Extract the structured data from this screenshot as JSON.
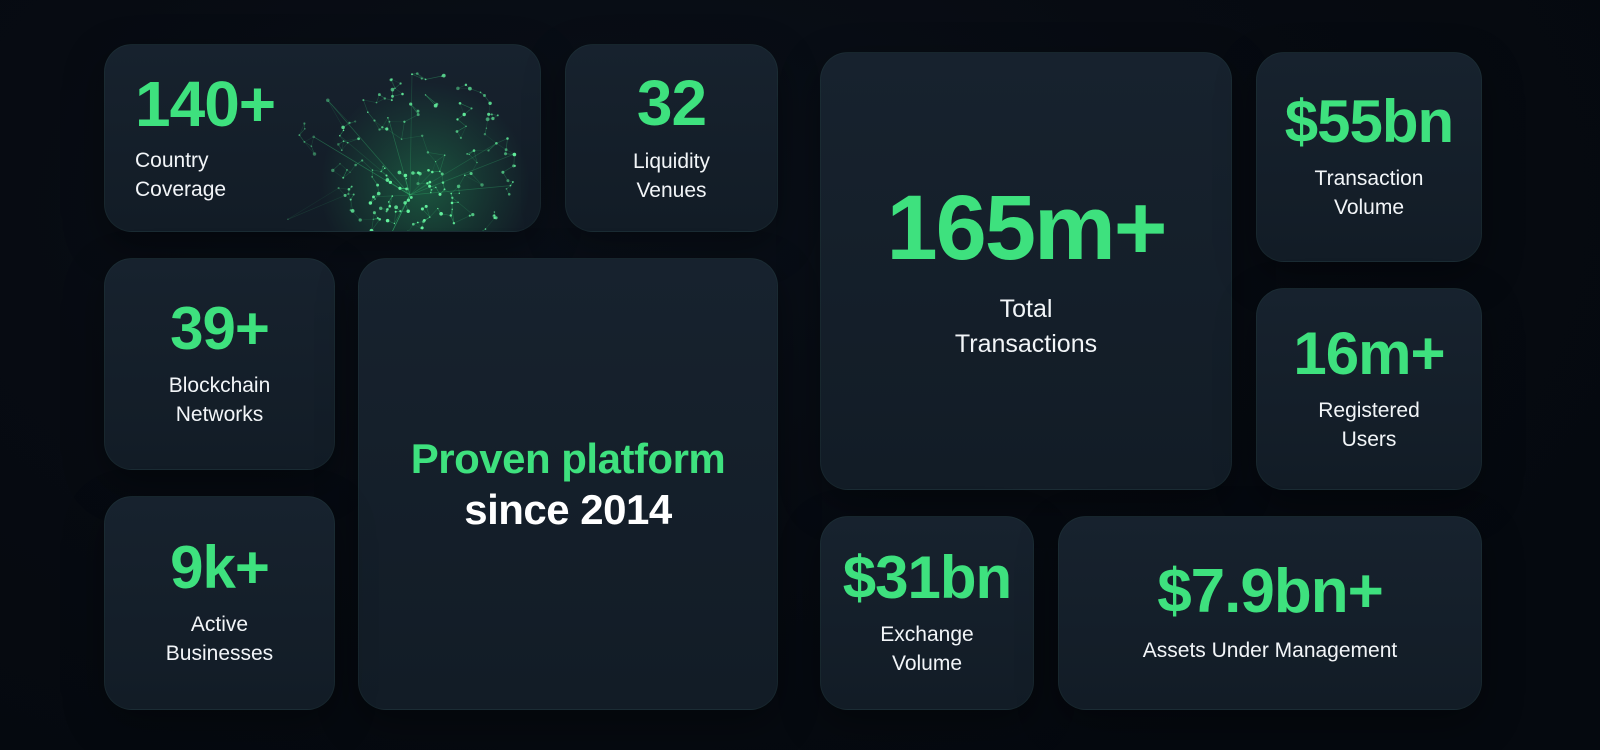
{
  "theme": {
    "page_background": "#070b12",
    "card_background": "#15202b",
    "accent_green": "#3ee17e",
    "label_white": "#f2f5f8"
  },
  "images": {
    "globe": "green-network-globe-graphic"
  },
  "cards": {
    "country_coverage": {
      "value": "140+",
      "label": "Country\nCoverage"
    },
    "liquidity_venues": {
      "value": "32",
      "label": "Liquidity\nVenues"
    },
    "blockchain_networks": {
      "value": "39+",
      "label": "Blockchain\nNetworks"
    },
    "proven_platform": {
      "line1": "Proven platform",
      "line2": "since 2014"
    },
    "active_businesses": {
      "value": "9k+",
      "label": "Active\nBusinesses"
    },
    "total_transactions": {
      "value": "165m+",
      "label": "Total\nTransactions"
    },
    "transaction_volume": {
      "value": "$55bn",
      "label": "Transaction\nVolume"
    },
    "registered_users": {
      "value": "16m+",
      "label": "Registered\nUsers"
    },
    "exchange_volume": {
      "value": "$31bn",
      "label": "Exchange\nVolume"
    },
    "assets_under_management": {
      "value": "$7.9bn+",
      "label": "Assets Under Management"
    }
  }
}
